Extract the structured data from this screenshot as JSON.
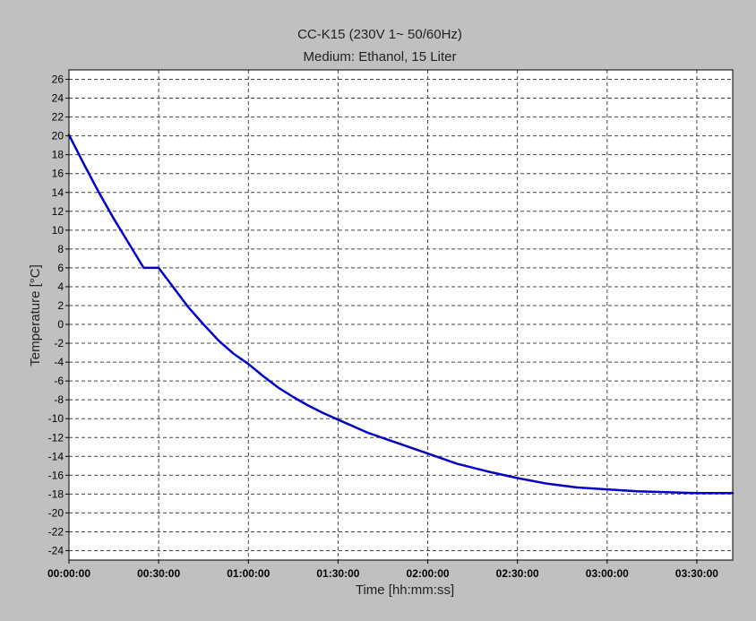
{
  "chart_data": {
    "type": "line",
    "title": "CC-K15 (230V 1~ 50/60Hz)",
    "subtitle": "Medium: Ethanol, 15 Liter",
    "xlabel": "Time [hh:mm:ss]",
    "ylabel": "Temperature [°C]",
    "xlim": [
      "00:00:00",
      "03:42:00"
    ],
    "ylim": [
      -25,
      27
    ],
    "x_ticks": [
      "00:00:00",
      "00:30:00",
      "01:00:00",
      "01:30:00",
      "02:00:00",
      "02:30:00",
      "03:00:00",
      "03:30:00"
    ],
    "y_ticks": [
      26,
      24,
      22,
      20,
      18,
      16,
      14,
      12,
      10,
      8,
      6,
      4,
      2,
      0,
      -2,
      -4,
      -6,
      -8,
      -10,
      -12,
      -14,
      -16,
      -18,
      -20,
      -22,
      -24
    ],
    "grid": true,
    "legend": "none",
    "colors": {
      "background": "#c0c0c0",
      "plot_area": "#ffffff",
      "line": "#0000c8",
      "grid": "#444444"
    },
    "series": [
      {
        "x": [
          "00:00:00",
          "00:05:00",
          "00:10:00",
          "00:15:00",
          "00:20:00",
          "00:25:00",
          "00:30:00",
          "00:35:00",
          "00:40:00",
          "00:45:00",
          "00:50:00",
          "00:55:00",
          "01:00:00",
          "01:05:00",
          "01:10:00",
          "01:15:00",
          "01:20:00",
          "01:25:00",
          "01:30:00",
          "01:40:00",
          "01:50:00",
          "02:00:00",
          "02:10:00",
          "02:20:00",
          "02:30:00",
          "02:40:00",
          "02:50:00",
          "03:00:00",
          "03:10:00",
          "03:20:00",
          "03:30:00",
          "03:42:00"
        ],
        "values": [
          20.1,
          17.0,
          14.0,
          11.2,
          8.6,
          6.0,
          6.0,
          3.9,
          1.8,
          0.0,
          -1.7,
          -3.1,
          -4.2,
          -5.5,
          -6.7,
          -7.7,
          -8.6,
          -9.4,
          -10.1,
          -11.5,
          -12.6,
          -13.7,
          -14.8,
          -15.6,
          -16.3,
          -16.9,
          -17.3,
          -17.5,
          -17.7,
          -17.8,
          -17.9,
          -17.9
        ]
      }
    ]
  }
}
